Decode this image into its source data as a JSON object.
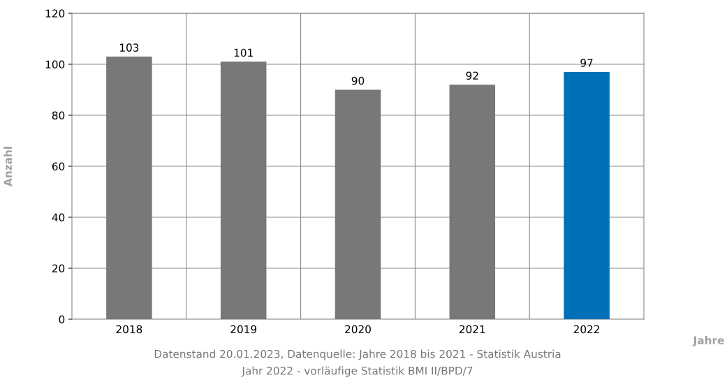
{
  "chart_data": {
    "type": "bar",
    "categories": [
      "2018",
      "2019",
      "2020",
      "2021",
      "2022"
    ],
    "values": [
      103,
      101,
      90,
      92,
      97
    ],
    "colors": [
      "#777877",
      "#777877",
      "#777877",
      "#777877",
      "#0070b8"
    ],
    "data_labels": true,
    "xlabel": "Jahre",
    "ylabel": "Anzahl",
    "ylim": [
      0,
      120
    ],
    "yticks": [
      0,
      20,
      40,
      60,
      80,
      100,
      120
    ],
    "grid": true,
    "annotations": [
      "Datenstand 20.01.2023, Datenquelle: Jahre 2018 bis 2021 - Statistik Austria",
      "Jahr 2022 - vorläufige Statistik BMI II/BPD/7"
    ]
  }
}
